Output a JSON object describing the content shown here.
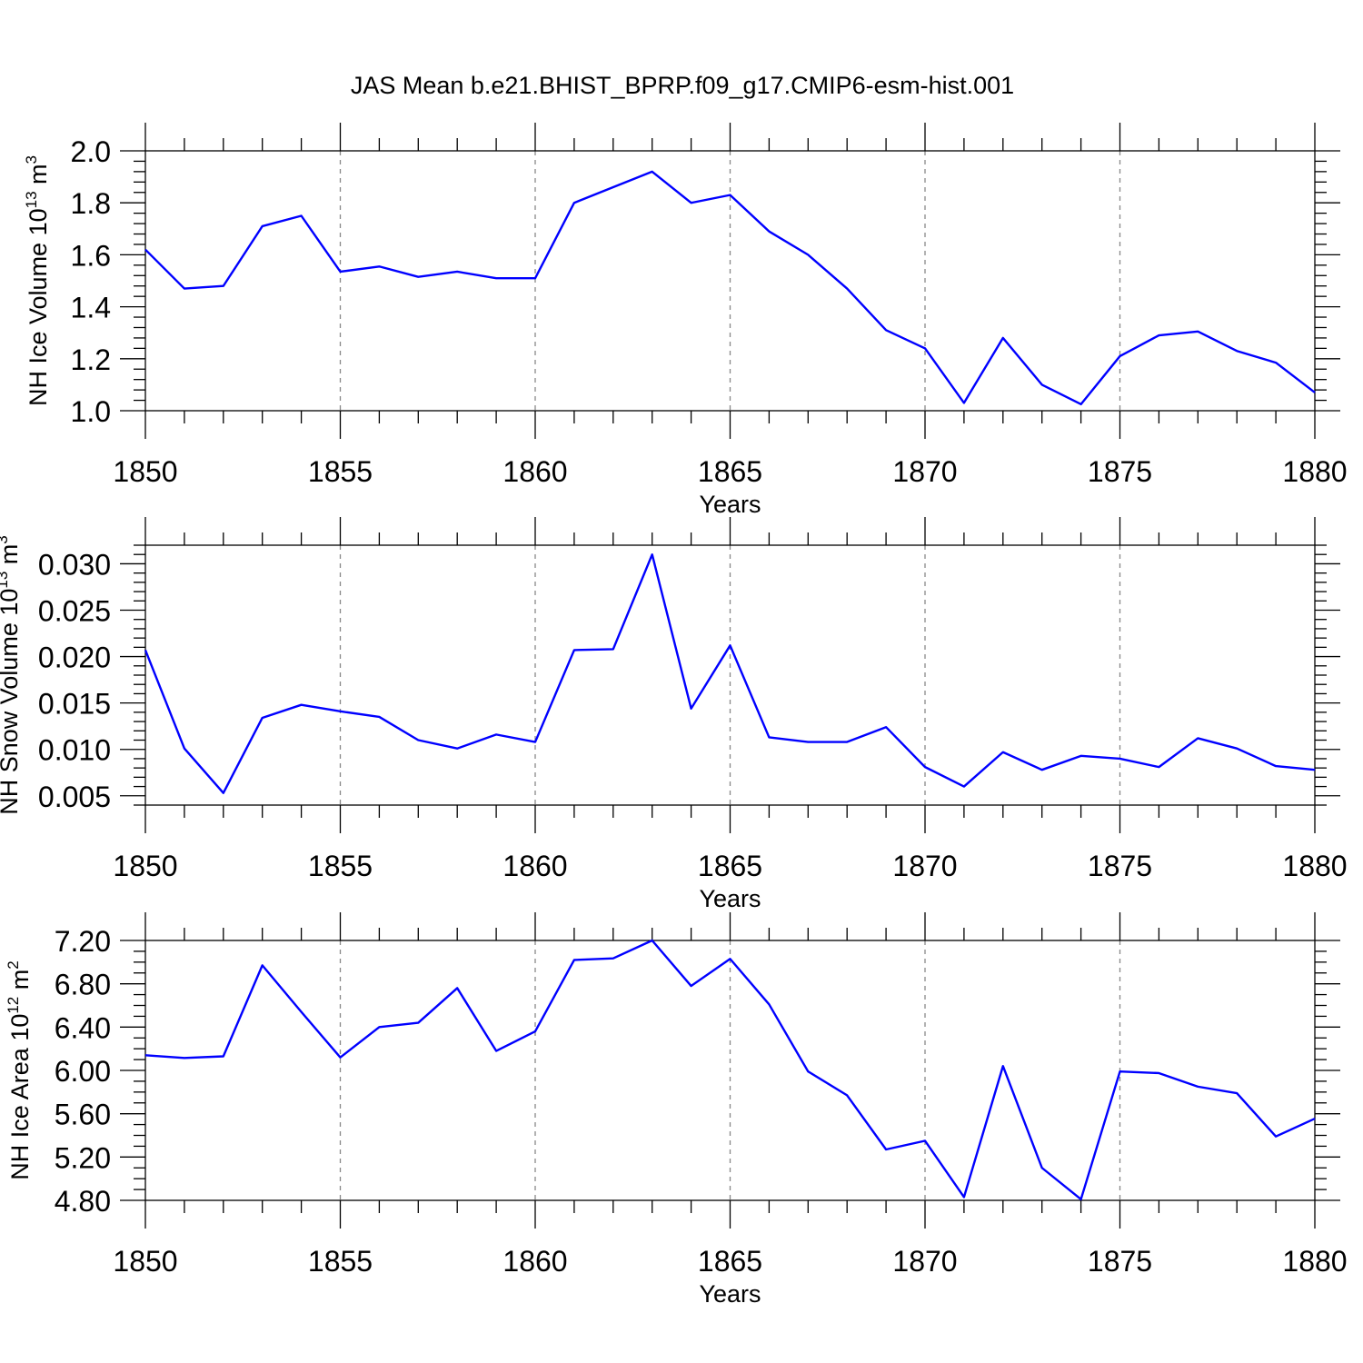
{
  "figure": {
    "title": "JAS Mean b.e21.BHIST_BPRP.f09_g17.CMIP6-esm-hist.001",
    "colors": {
      "line": "#0000ff",
      "axis": "#000000",
      "grid": "#888888"
    }
  },
  "chart_data": [
    {
      "type": "line",
      "ylabel": "NH Ice Volume 10",
      "ylabel_sup": "13",
      "ylabel_unit": " m",
      "ylabel_unit_sup": "3",
      "xlabel": "Years",
      "xlim": [
        1850,
        1880
      ],
      "ylim": [
        1.0,
        2.0
      ],
      "yticks": [
        "1.0",
        "1.2",
        "1.4",
        "1.6",
        "1.8",
        "2.0"
      ],
      "xticks": [
        "1850",
        "1855",
        "1860",
        "1865",
        "1870",
        "1875",
        "1880"
      ],
      "grid": "vertical dashed at major x ticks",
      "series": [
        {
          "x": [
            1850,
            1851,
            1852,
            1853,
            1854,
            1855,
            1856,
            1857,
            1858,
            1859,
            1860,
            1861,
            1862,
            1863,
            1864,
            1865,
            1866,
            1867,
            1868,
            1869,
            1870,
            1871,
            1872,
            1873,
            1874,
            1875,
            1876,
            1877,
            1878,
            1879,
            1880
          ],
          "values": [
            1.62,
            1.47,
            1.48,
            1.71,
            1.75,
            1.535,
            1.555,
            1.515,
            1.535,
            1.51,
            1.51,
            1.8,
            1.86,
            1.92,
            1.8,
            1.83,
            1.69,
            1.6,
            1.47,
            1.31,
            1.24,
            1.03,
            1.28,
            1.1,
            1.025,
            1.21,
            1.29,
            1.305,
            1.23,
            1.185,
            1.07
          ]
        }
      ]
    },
    {
      "type": "line",
      "ylabel": "NH Snow Volume 10",
      "ylabel_sup": "13",
      "ylabel_unit": " m",
      "ylabel_unit_sup": "3",
      "xlabel": "Years",
      "xlim": [
        1850,
        1880
      ],
      "ylim": [
        0.004,
        0.032
      ],
      "yticks": [
        "0.005",
        "0.010",
        "0.015",
        "0.020",
        "0.025",
        "0.030"
      ],
      "xticks": [
        "1850",
        "1855",
        "1860",
        "1865",
        "1870",
        "1875",
        "1880"
      ],
      "grid": "vertical dashed at major x ticks",
      "series": [
        {
          "x": [
            1850,
            1851,
            1852,
            1853,
            1854,
            1855,
            1856,
            1857,
            1858,
            1859,
            1860,
            1861,
            1862,
            1863,
            1864,
            1865,
            1866,
            1867,
            1868,
            1869,
            1870,
            1871,
            1872,
            1873,
            1874,
            1875,
            1876,
            1877,
            1878,
            1879,
            1880
          ],
          "values": [
            0.0207,
            0.0101,
            0.0053,
            0.0134,
            0.0148,
            0.0141,
            0.0135,
            0.011,
            0.0101,
            0.0116,
            0.0108,
            0.0207,
            0.0208,
            0.031,
            0.0144,
            0.0212,
            0.0113,
            0.0108,
            0.0108,
            0.0124,
            0.0081,
            0.006,
            0.0097,
            0.0078,
            0.0093,
            0.009,
            0.0081,
            0.0112,
            0.0101,
            0.0082,
            0.0078
          ]
        }
      ]
    },
    {
      "type": "line",
      "ylabel": "NH Ice Area 10",
      "ylabel_sup": "12",
      "ylabel_unit": " m",
      "ylabel_unit_sup": "2",
      "xlabel": "Years",
      "xlim": [
        1850,
        1880
      ],
      "ylim": [
        4.8,
        7.2
      ],
      "yticks": [
        "4.80",
        "5.20",
        "5.60",
        "6.00",
        "6.40",
        "6.80",
        "7.20"
      ],
      "xticks": [
        "1850",
        "1855",
        "1860",
        "1865",
        "1870",
        "1875",
        "1880"
      ],
      "grid": "vertical dashed at major x ticks",
      "series": [
        {
          "x": [
            1850,
            1851,
            1852,
            1853,
            1854,
            1855,
            1856,
            1857,
            1858,
            1859,
            1860,
            1861,
            1862,
            1863,
            1864,
            1865,
            1866,
            1867,
            1868,
            1869,
            1870,
            1871,
            1872,
            1873,
            1874,
            1875,
            1876,
            1877,
            1878,
            1879,
            1880
          ],
          "values": [
            6.14,
            6.115,
            6.13,
            6.97,
            6.54,
            6.12,
            6.4,
            6.44,
            6.76,
            6.18,
            6.36,
            7.02,
            7.035,
            7.2,
            6.78,
            7.03,
            6.61,
            5.99,
            5.77,
            5.27,
            5.35,
            4.83,
            6.04,
            5.1,
            4.81,
            5.99,
            5.975,
            5.85,
            5.79,
            5.39,
            5.555
          ]
        }
      ]
    }
  ]
}
